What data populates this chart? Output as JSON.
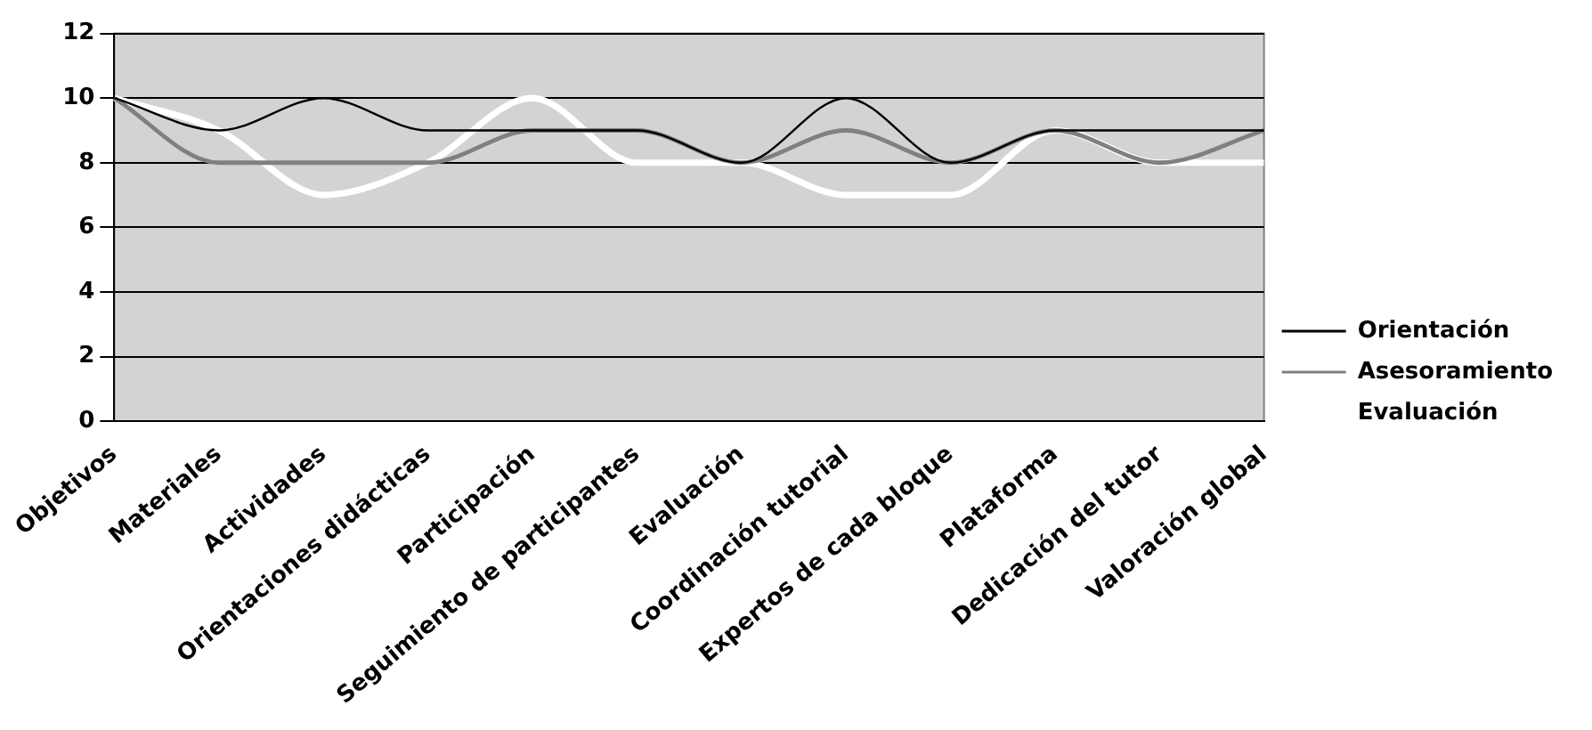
{
  "chart_data": {
    "type": "line",
    "categories": [
      "Objetivos",
      "Materiales",
      "Actividades",
      "Orientaciones didácticas",
      "Participación",
      "Seguimiento de participantes",
      "Evaluación",
      "Coordinación tutorial",
      "Expertos de cada bloque",
      "Plataforma",
      "Dedicación del tutor",
      "Valoración global"
    ],
    "series": [
      {
        "name": "Orientación",
        "color": "#000000",
        "values": [
          10,
          9,
          10,
          9,
          9,
          9,
          8,
          10,
          8,
          9,
          9,
          9
        ]
      },
      {
        "name": "Asesoramiento",
        "color": "#808080",
        "values": [
          10,
          8,
          8,
          8,
          9,
          9,
          8,
          9,
          8,
          9,
          8,
          9
        ]
      },
      {
        "name": "Evaluación",
        "color": "#ffffff",
        "values": [
          10,
          9,
          7,
          8,
          10,
          8,
          8,
          7,
          7,
          9,
          8,
          8
        ]
      }
    ],
    "ylim": [
      0,
      12
    ],
    "yticks": [
      0,
      2,
      4,
      6,
      8,
      10,
      12
    ],
    "grid": "y",
    "legend": "right",
    "marker": "none",
    "line_style": "solid"
  }
}
